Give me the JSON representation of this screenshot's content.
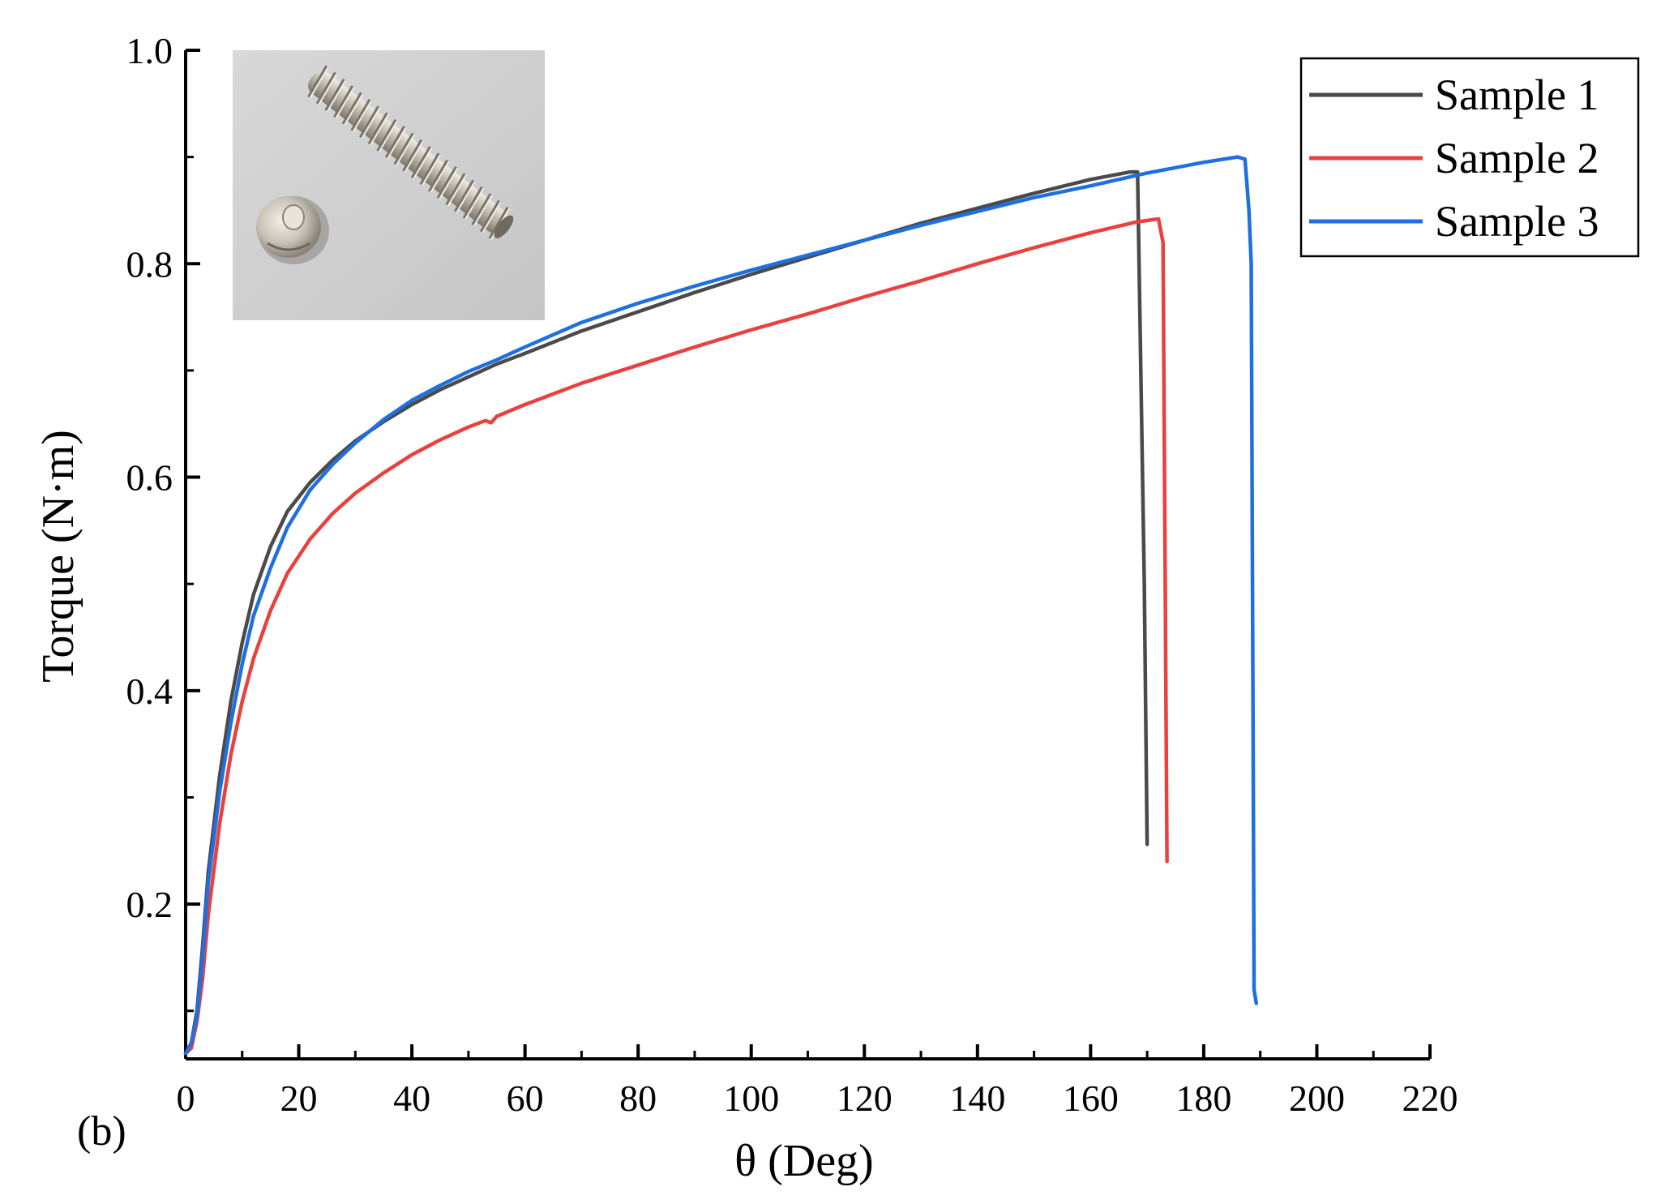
{
  "panel_label": "(b)",
  "inset": {
    "description_icon": "screw-photo-icon"
  },
  "chart_data": {
    "type": "line",
    "title": "",
    "xlabel": "θ (Deg)",
    "ylabel": "Torque (N·m)",
    "xlim": [
      0,
      220
    ],
    "ylim": [
      0.055,
      1.0
    ],
    "xticks": [
      0,
      20,
      40,
      60,
      80,
      100,
      120,
      140,
      160,
      180,
      200,
      220
    ],
    "xtick_labels": [
      "0",
      "20",
      "40",
      "60",
      "80",
      "100",
      "120",
      "140",
      "160",
      "180",
      "200",
      "220"
    ],
    "yticks": [
      0.2,
      0.4,
      0.6,
      0.8,
      1.0
    ],
    "ytick_labels": [
      "0.2",
      "0.4",
      "0.6",
      "0.8",
      "1.0"
    ],
    "grid": false,
    "legend_position": "top-right",
    "series": [
      {
        "name": "Sample 1",
        "color": "#4a4a4a",
        "points": [
          [
            0,
            0.06
          ],
          [
            1,
            0.07
          ],
          [
            2,
            0.1
          ],
          [
            3,
            0.16
          ],
          [
            4,
            0.23
          ],
          [
            6,
            0.32
          ],
          [
            8,
            0.39
          ],
          [
            10,
            0.445
          ],
          [
            12,
            0.49
          ],
          [
            15,
            0.535
          ],
          [
            18,
            0.568
          ],
          [
            22,
            0.595
          ],
          [
            26,
            0.616
          ],
          [
            30,
            0.634
          ],
          [
            35,
            0.652
          ],
          [
            40,
            0.668
          ],
          [
            45,
            0.682
          ],
          [
            50,
            0.694
          ],
          [
            55,
            0.706
          ],
          [
            60,
            0.716
          ],
          [
            70,
            0.737
          ],
          [
            80,
            0.755
          ],
          [
            90,
            0.773
          ],
          [
            100,
            0.79
          ],
          [
            110,
            0.806
          ],
          [
            120,
            0.822
          ],
          [
            130,
            0.838
          ],
          [
            140,
            0.852
          ],
          [
            150,
            0.866
          ],
          [
            160,
            0.879
          ],
          [
            167,
            0.886
          ],
          [
            168.3,
            0.886
          ],
          [
            169.5,
            0.5
          ],
          [
            170,
            0.256
          ]
        ]
      },
      {
        "name": "Sample 2",
        "color": "#e8413e",
        "points": [
          [
            0,
            0.06
          ],
          [
            1,
            0.065
          ],
          [
            2,
            0.09
          ],
          [
            3,
            0.13
          ],
          [
            4,
            0.19
          ],
          [
            6,
            0.275
          ],
          [
            8,
            0.34
          ],
          [
            10,
            0.39
          ],
          [
            12,
            0.43
          ],
          [
            15,
            0.475
          ],
          [
            18,
            0.51
          ],
          [
            22,
            0.542
          ],
          [
            26,
            0.566
          ],
          [
            30,
            0.585
          ],
          [
            35,
            0.604
          ],
          [
            40,
            0.621
          ],
          [
            45,
            0.635
          ],
          [
            50,
            0.647
          ],
          [
            53,
            0.653
          ],
          [
            54,
            0.651
          ],
          [
            55,
            0.657
          ],
          [
            60,
            0.668
          ],
          [
            70,
            0.688
          ],
          [
            80,
            0.705
          ],
          [
            90,
            0.722
          ],
          [
            100,
            0.738
          ],
          [
            110,
            0.753
          ],
          [
            120,
            0.769
          ],
          [
            130,
            0.784
          ],
          [
            140,
            0.8
          ],
          [
            150,
            0.815
          ],
          [
            160,
            0.829
          ],
          [
            168,
            0.839
          ],
          [
            172,
            0.842
          ],
          [
            172.8,
            0.82
          ],
          [
            173.5,
            0.24
          ]
        ]
      },
      {
        "name": "Sample 3",
        "color": "#1f6fe0",
        "points": [
          [
            0,
            0.06
          ],
          [
            1,
            0.07
          ],
          [
            2,
            0.095
          ],
          [
            3,
            0.15
          ],
          [
            4,
            0.22
          ],
          [
            6,
            0.305
          ],
          [
            8,
            0.37
          ],
          [
            10,
            0.425
          ],
          [
            12,
            0.47
          ],
          [
            15,
            0.515
          ],
          [
            18,
            0.553
          ],
          [
            22,
            0.588
          ],
          [
            26,
            0.612
          ],
          [
            30,
            0.632
          ],
          [
            35,
            0.654
          ],
          [
            40,
            0.672
          ],
          [
            45,
            0.686
          ],
          [
            50,
            0.699
          ],
          [
            55,
            0.71
          ],
          [
            60,
            0.722
          ],
          [
            70,
            0.745
          ],
          [
            80,
            0.763
          ],
          [
            90,
            0.779
          ],
          [
            100,
            0.794
          ],
          [
            110,
            0.808
          ],
          [
            120,
            0.822
          ],
          [
            130,
            0.836
          ],
          [
            140,
            0.849
          ],
          [
            150,
            0.862
          ],
          [
            160,
            0.873
          ],
          [
            170,
            0.885
          ],
          [
            180,
            0.895
          ],
          [
            186,
            0.9
          ],
          [
            187.3,
            0.898
          ],
          [
            188,
            0.85
          ],
          [
            188.4,
            0.8
          ],
          [
            188.7,
            0.4
          ],
          [
            188.9,
            0.12
          ],
          [
            189.3,
            0.107
          ]
        ]
      }
    ]
  }
}
